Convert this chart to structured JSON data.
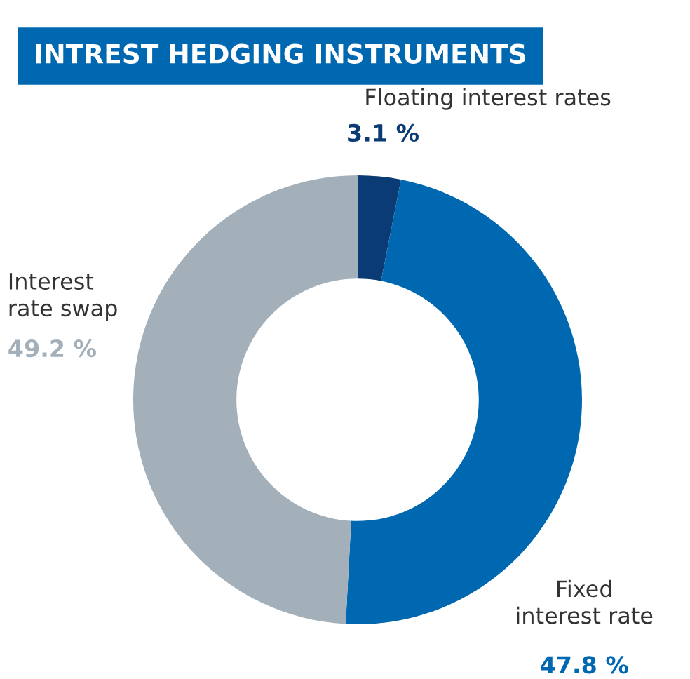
{
  "chart_data": {
    "type": "donut",
    "title": "INTREST HEDGING INSTRUMENTS",
    "categories": [
      "Floating interest rates",
      "Fixed\ninterest rate",
      "Interest\nrate swap"
    ],
    "values": [
      3.1,
      47.8,
      49.2
    ],
    "value_labels": [
      "3.1 %",
      "47.8 %",
      "49.2 %"
    ],
    "colors": [
      "#0b3b74",
      "#0067b1",
      "#a3b0ba"
    ],
    "legend": false
  }
}
